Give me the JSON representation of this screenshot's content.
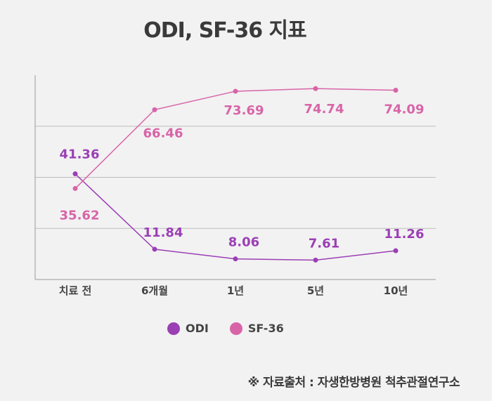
{
  "chart_data": {
    "type": "line",
    "title": "ODI, SF-36 지표",
    "categories": [
      "치료 전",
      "6개월",
      "1년",
      "5년",
      "10년"
    ],
    "series": [
      {
        "name": "ODI",
        "color": "#9b3fb5",
        "values": [
          41.36,
          11.84,
          8.06,
          7.61,
          11.26
        ]
      },
      {
        "name": "SF-36",
        "color": "#d864a8",
        "values": [
          35.62,
          66.46,
          73.69,
          74.74,
          74.09
        ]
      }
    ],
    "ylim": [
      0,
      80
    ],
    "grid": true,
    "legend": "bottom-center"
  },
  "labels": {
    "ODI": [
      "41.36",
      "11.84",
      "8.06",
      "7.61",
      "11.26"
    ],
    "SF-36": [
      "35.62",
      "66.46",
      "73.69",
      "74.74",
      "74.09"
    ]
  },
  "legend": {
    "odi": "ODI",
    "sf36": "SF-36"
  },
  "source": "※ 자료출처 : 자생한방병원 척추관절연구소"
}
